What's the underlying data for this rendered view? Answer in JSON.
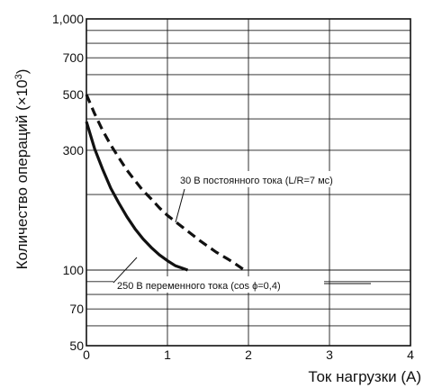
{
  "chart_data": {
    "type": "line",
    "xlabel": "Ток нагрузки (A)",
    "ylabel": "Количество операций (×10³)",
    "ylabel_parts": {
      "main": "Количество операций  (×10",
      "sup": "3",
      "close": ")"
    },
    "xlim": [
      0,
      4
    ],
    "ylim": [
      50,
      1000
    ],
    "yscale": "log",
    "x_ticks": [
      0,
      1,
      2,
      3,
      4
    ],
    "x_tick_labels": [
      "0",
      "1",
      "2",
      "3",
      "4"
    ],
    "y_ticks": [
      50,
      70,
      100,
      300,
      500,
      700,
      1000
    ],
    "y_tick_labels": [
      "50",
      "70",
      "100",
      "300",
      "500",
      "700",
      "1,000"
    ],
    "y_grid": [
      50,
      60,
      70,
      80,
      90,
      100,
      200,
      300,
      400,
      500,
      600,
      700,
      800,
      900,
      1000
    ],
    "x_grid": [
      1,
      2,
      3
    ],
    "grid": true,
    "series": [
      {
        "name": "250 В переменного тока (cos ϕ=0,4)",
        "style": "solid",
        "color": "#111111",
        "x": [
          0.0,
          0.1,
          0.2,
          0.3,
          0.4,
          0.5,
          0.6,
          0.7,
          0.8,
          0.9,
          1.0,
          1.1,
          1.25
        ],
        "y": [
          390,
          305,
          252,
          212,
          185,
          163,
          146,
          133,
          123,
          115,
          109,
          104,
          100
        ]
      },
      {
        "name": "30 В постоянного тока (L/R=7 мс)",
        "style": "dashed",
        "color": "#111111",
        "x": [
          0.0,
          0.1,
          0.2,
          0.3,
          0.4,
          0.5,
          0.6,
          0.7,
          0.8,
          0.9,
          1.0,
          1.2,
          1.4,
          1.6,
          1.8,
          1.95
        ],
        "y": [
          500,
          420,
          360,
          315,
          280,
          250,
          227,
          207,
          192,
          177,
          165,
          147,
          131,
          118,
          108,
          100
        ]
      }
    ],
    "annotations": [
      {
        "text": "30 В постоянного тока (L/R=7 мс)",
        "series": 1
      },
      {
        "text": "250 В переменного тока (cos ϕ=0,4)",
        "series": 0
      }
    ]
  }
}
